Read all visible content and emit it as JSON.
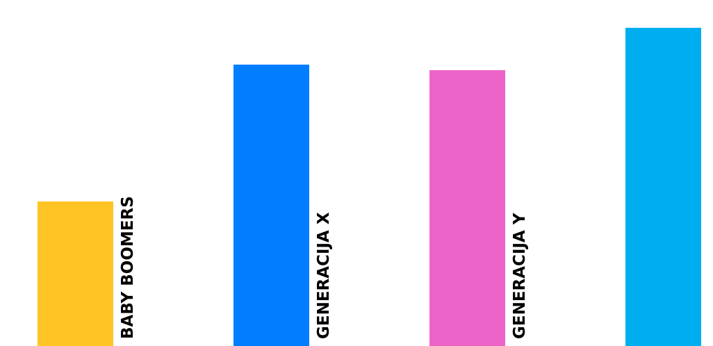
{
  "chart_data": {
    "type": "bar",
    "categories": [
      "BABY BOOMERS",
      "GENERACIJA X",
      "GENERACIJA Y",
      ""
    ],
    "values": [
      208,
      405,
      397,
      458
    ],
    "colors": [
      "#FDC424",
      "#017EFF",
      "#EC64C8",
      "#00AEEF"
    ],
    "title": "",
    "xlabel": "",
    "ylabel": "",
    "grid": false,
    "legend": "none"
  }
}
